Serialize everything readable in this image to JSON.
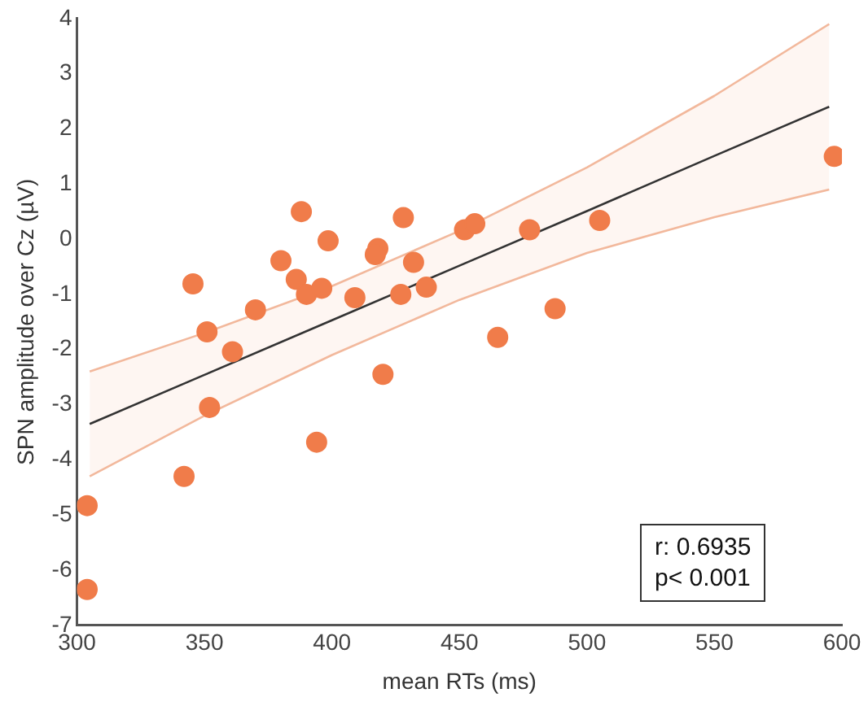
{
  "chart_data": {
    "type": "scatter",
    "xlabel": "mean RTs (ms)",
    "ylabel": "SPN amplitude over Cz (µV)",
    "xlim": [
      300,
      600
    ],
    "xticks": [
      300,
      350,
      400,
      450,
      500,
      550,
      600
    ],
    "ylim": [
      -7,
      4
    ],
    "yticks": [
      -7,
      -6,
      -5,
      -4,
      -3,
      -2,
      -1,
      0,
      1,
      2,
      3,
      4
    ],
    "grid": false,
    "legend": false,
    "series": [
      {
        "type": "scatter",
        "marker": "circle",
        "color": "#f07c4a",
        "x": [
          304,
          304,
          342,
          352,
          394,
          420,
          388,
          428,
          398.5,
          418,
          417,
          380,
          432,
          345.5,
          386,
          390,
          396,
          409,
          427,
          437,
          370,
          351,
          361,
          452,
          456,
          465,
          597,
          477.5,
          505,
          487.5
        ],
        "values": [
          -6.35,
          -4.83,
          -4.3,
          -3.05,
          -3.68,
          -2.45,
          0.5,
          0.39,
          -0.03,
          -0.17,
          -0.28,
          -0.39,
          -0.42,
          -0.81,
          -0.73,
          -1.0,
          -0.89,
          -1.06,
          -1.0,
          -0.87,
          -1.28,
          -1.68,
          -2.04,
          0.17,
          0.28,
          -1.78,
          1.5,
          0.17,
          0.34,
          -1.26
        ]
      },
      {
        "type": "line",
        "marker": "none",
        "color": "#333333",
        "x": [
          305,
          350,
          400,
          450,
          500,
          550,
          595
        ],
        "values": [
          -3.35,
          -2.46,
          -1.47,
          -0.48,
          0.51,
          1.51,
          2.4
        ],
        "lower": [
          -4.3,
          -3.2,
          -2.1,
          -1.1,
          -0.25,
          0.4,
          0.9
        ],
        "upper": [
          -2.4,
          -1.7,
          -0.85,
          0.15,
          1.3,
          2.6,
          3.9
        ]
      },
      {
        "type": "line",
        "marker": "none",
        "color": "#f2b89c",
        "x": [
          305,
          350,
          400,
          450,
          500,
          550,
          595
        ],
        "values": [
          -4.3,
          -3.2,
          -2.1,
          -1.1,
          -0.25,
          0.4,
          0.9
        ]
      },
      {
        "type": "line",
        "marker": "none",
        "color": "#f2b89c",
        "x": [
          305,
          350,
          400,
          450,
          500,
          550,
          595
        ],
        "values": [
          -2.4,
          -1.7,
          -0.85,
          0.15,
          1.3,
          2.6,
          3.9
        ]
      }
    ],
    "annotations": [
      "r: 0.6935",
      "p< 0.001"
    ]
  }
}
